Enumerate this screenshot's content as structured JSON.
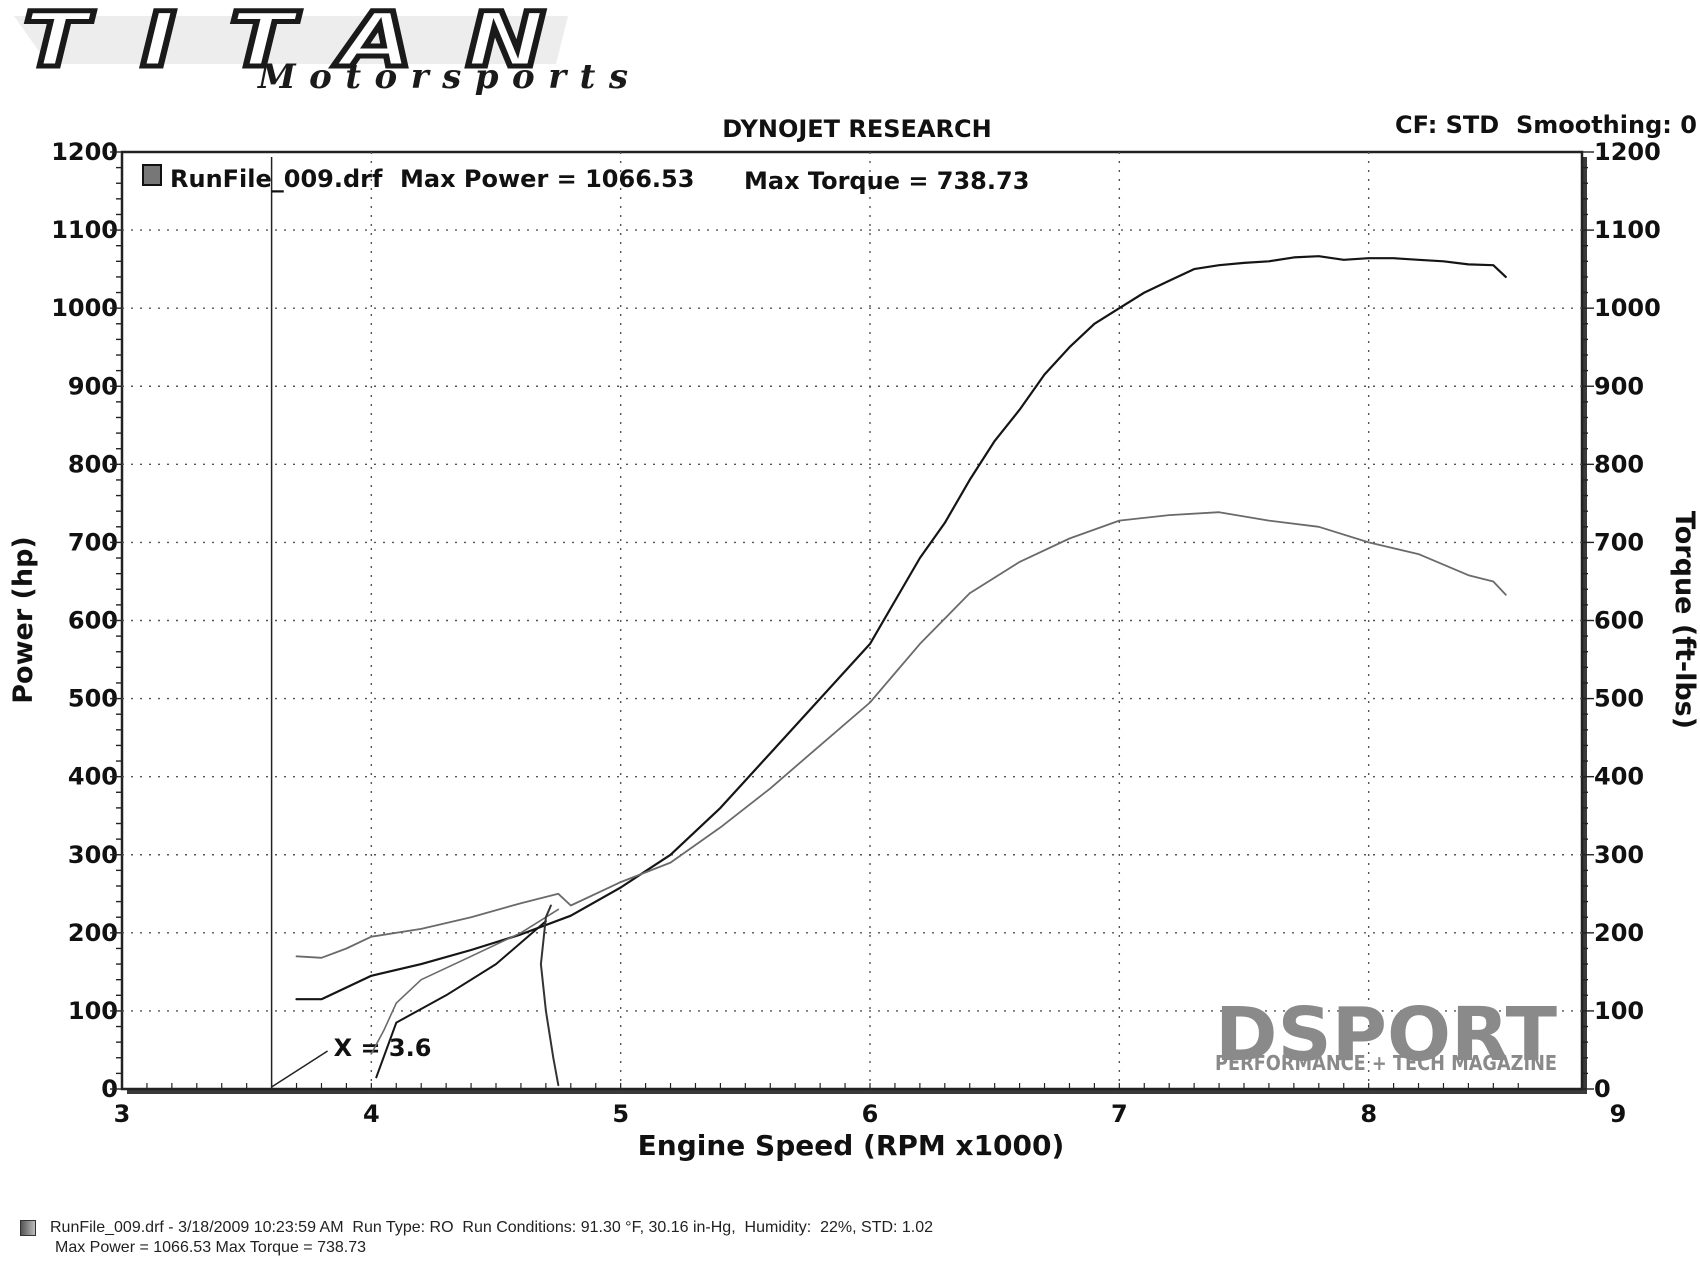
{
  "logos": {
    "brand_main": "TITAN",
    "brand_sub": "Motorsports",
    "watermark_main": "DSPORT",
    "watermark_sub": "PERFORMANCE + TECH MAGAZINE"
  },
  "header": {
    "title": "DYNOJET RESEARCH",
    "settings": "CF: STD  Smoothing: 0"
  },
  "legend": {
    "run": "RunFile_009.drf",
    "max_power": "Max Power = 1066.53",
    "max_torque": "Max Torque = 738.73"
  },
  "cursor_label": "X = 3.6",
  "footer": {
    "line1_file": "RunFile_009.drf - 3/18/2009 10:23:59 AM",
    "line1_runtype": "Run Type: RO",
    "line1_conditions": "Run Conditions: 91.30 °F, 30.16 in-Hg,",
    "line1_humidity": "Humidity:  22%, STD: 1.02",
    "line2": "Max Power = 1066.53  Max Torque = 738.73"
  },
  "colors": {
    "power": "#151515",
    "torque": "#6a6a6a",
    "grid": "#555555",
    "watermark": "#8a8a8a"
  },
  "chart_data": {
    "type": "line",
    "title": "DYNOJET RESEARCH",
    "xlabel": "Engine Speed (RPM x1000)",
    "ylabel": "Power (hp)",
    "y2label": "Torque (ft-lbs)",
    "xlim": [
      3,
      9
    ],
    "ylim": [
      0,
      1200
    ],
    "y2lim": [
      0,
      1200
    ],
    "x_ticks": [
      3,
      4,
      5,
      6,
      7,
      8,
      9
    ],
    "y_ticks": [
      0,
      100,
      200,
      300,
      400,
      500,
      600,
      700,
      800,
      900,
      1000,
      1100,
      1200
    ],
    "grid": true,
    "cursor_x": 3.6,
    "series": [
      {
        "name": "Max Power = 1066.53",
        "axis": "left",
        "points": [
          [
            3.7,
            115
          ],
          [
            3.8,
            115
          ],
          [
            3.9,
            130
          ],
          [
            4.0,
            145
          ],
          [
            4.2,
            160
          ],
          [
            4.4,
            178
          ],
          [
            4.6,
            198
          ],
          [
            4.8,
            222
          ],
          [
            5.0,
            258
          ],
          [
            5.2,
            300
          ],
          [
            5.4,
            360
          ],
          [
            5.6,
            430
          ],
          [
            5.8,
            500
          ],
          [
            6.0,
            570
          ],
          [
            6.1,
            625
          ],
          [
            6.2,
            680
          ],
          [
            6.3,
            725
          ],
          [
            6.4,
            780
          ],
          [
            6.5,
            830
          ],
          [
            6.6,
            870
          ],
          [
            6.7,
            915
          ],
          [
            6.8,
            950
          ],
          [
            6.9,
            980
          ],
          [
            7.0,
            1000
          ],
          [
            7.1,
            1020
          ],
          [
            7.2,
            1035
          ],
          [
            7.3,
            1050
          ],
          [
            7.4,
            1055
          ],
          [
            7.5,
            1058
          ],
          [
            7.6,
            1060
          ],
          [
            7.7,
            1065
          ],
          [
            7.8,
            1066.5
          ],
          [
            7.9,
            1062
          ],
          [
            8.0,
            1064
          ],
          [
            8.1,
            1064
          ],
          [
            8.2,
            1062
          ],
          [
            8.3,
            1060
          ],
          [
            8.4,
            1056
          ],
          [
            8.5,
            1055
          ],
          [
            8.55,
            1040
          ]
        ]
      },
      {
        "name": "Max Torque = 738.73",
        "axis": "right",
        "points": [
          [
            3.7,
            170
          ],
          [
            3.8,
            168
          ],
          [
            3.9,
            180
          ],
          [
            4.0,
            195
          ],
          [
            4.2,
            205
          ],
          [
            4.4,
            220
          ],
          [
            4.6,
            238
          ],
          [
            4.75,
            250
          ],
          [
            4.8,
            235
          ],
          [
            5.0,
            265
          ],
          [
            5.2,
            290
          ],
          [
            5.4,
            335
          ],
          [
            5.6,
            385
          ],
          [
            5.8,
            440
          ],
          [
            6.0,
            495
          ],
          [
            6.2,
            570
          ],
          [
            6.4,
            635
          ],
          [
            6.6,
            675
          ],
          [
            6.8,
            705
          ],
          [
            7.0,
            728
          ],
          [
            7.2,
            735
          ],
          [
            7.4,
            738.7
          ],
          [
            7.6,
            728
          ],
          [
            7.8,
            720
          ],
          [
            8.0,
            700
          ],
          [
            8.2,
            685
          ],
          [
            8.4,
            658
          ],
          [
            8.5,
            650
          ],
          [
            8.55,
            633
          ]
        ]
      },
      {
        "name": "",
        "axis": "right",
        "points": [
          [
            4.0,
            45
          ],
          [
            4.05,
            75
          ],
          [
            4.1,
            110
          ],
          [
            4.2,
            140
          ],
          [
            4.4,
            170
          ],
          [
            4.6,
            200
          ],
          [
            4.75,
            230
          ]
        ]
      },
      {
        "name": "",
        "axis": "left",
        "points": [
          [
            4.02,
            15
          ],
          [
            4.1,
            85
          ],
          [
            4.3,
            120
          ],
          [
            4.5,
            160
          ],
          [
            4.7,
            215
          ]
        ]
      },
      {
        "name": "",
        "axis": "left",
        "points": [
          [
            4.75,
            5
          ],
          [
            4.73,
            40
          ],
          [
            4.7,
            100
          ],
          [
            4.68,
            160
          ],
          [
            4.7,
            220
          ],
          [
            4.72,
            235
          ]
        ]
      }
    ]
  }
}
